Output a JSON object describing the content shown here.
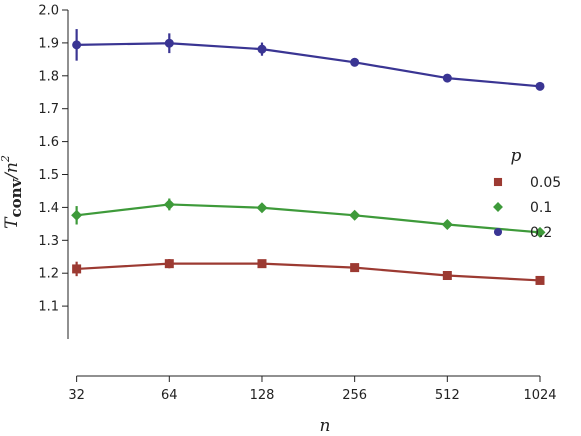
{
  "chart_data": {
    "type": "line",
    "title": "",
    "xlabel": "n",
    "ylabel_main": "T",
    "ylabel_sub": "conv",
    "ylabel_tail": "/n",
    "ylabel_sup": "2",
    "x_scale": "log2",
    "x": [
      32,
      64,
      128,
      256,
      512,
      1024
    ],
    "x_tick_labels": [
      "32",
      "64",
      "128",
      "256",
      "512",
      "1024"
    ],
    "xlim": [
      30,
      1024
    ],
    "ylim": [
      1.0,
      2.0
    ],
    "y_ticks": [
      1.1,
      1.2,
      1.3,
      1.4,
      1.5,
      1.6,
      1.7,
      1.8,
      1.9,
      2.0
    ],
    "y_tick_labels": [
      "1.1",
      "1.2",
      "1.3",
      "1.4",
      "1.5",
      "1.6",
      "1.7",
      "1.8",
      "1.9",
      "2.0"
    ],
    "grid": false,
    "legend": {
      "title": "p",
      "placement": "right"
    },
    "series": [
      {
        "name": "0.05",
        "marker": "square",
        "color": "#9c3a32",
        "values": [
          1.213,
          1.229,
          1.229,
          1.217,
          1.193,
          1.178
        ],
        "errors": [
          0.022,
          0.014,
          0.008,
          0.006,
          0.005,
          0.004
        ]
      },
      {
        "name": "0.1",
        "marker": "diamond",
        "color": "#3e9a3a",
        "values": [
          1.376,
          1.409,
          1.399,
          1.376,
          1.348,
          1.324
        ],
        "errors": [
          0.028,
          0.018,
          0.01,
          0.007,
          0.006,
          0.005
        ]
      },
      {
        "name": "0.2",
        "marker": "circle",
        "color": "#3a3593",
        "values": [
          1.894,
          1.899,
          1.881,
          1.841,
          1.793,
          1.768
        ],
        "errors": [
          0.048,
          0.03,
          0.02,
          0.013,
          0.007,
          0.005
        ]
      }
    ]
  }
}
